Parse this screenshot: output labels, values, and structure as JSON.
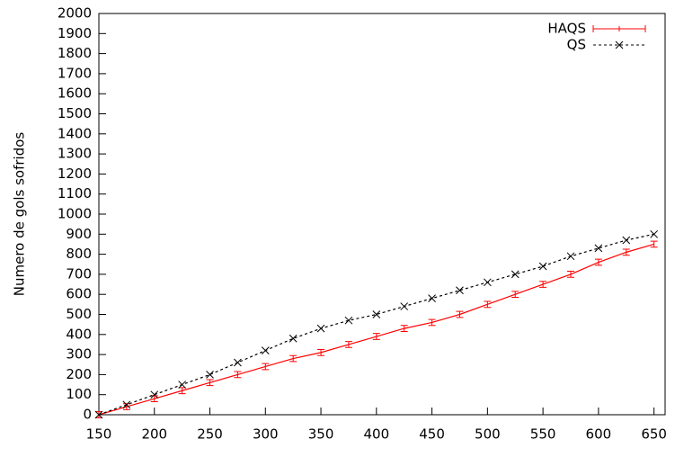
{
  "chart_data": {
    "type": "line",
    "y_label": "Numero de gols sofridos",
    "x": [
      150,
      175,
      200,
      225,
      250,
      275,
      300,
      325,
      350,
      375,
      400,
      425,
      450,
      475,
      500,
      525,
      550,
      575,
      600,
      625,
      650
    ],
    "series": [
      {
        "name": "HAQS",
        "color": "#ff0000",
        "dashed": false,
        "marker": "errorbar",
        "values": [
          0,
          40,
          80,
          120,
          160,
          200,
          240,
          280,
          310,
          350,
          390,
          430,
          460,
          500,
          550,
          600,
          650,
          700,
          760,
          810,
          850
        ],
        "errors": [
          15,
          15,
          15,
          15,
          15,
          15,
          15,
          15,
          15,
          15,
          15,
          15,
          15,
          15,
          15,
          15,
          15,
          15,
          15,
          15,
          15
        ]
      },
      {
        "name": "QS",
        "color": "#000000",
        "dashed": true,
        "marker": "x",
        "values": [
          0,
          50,
          100,
          150,
          200,
          260,
          320,
          380,
          430,
          470,
          500,
          540,
          580,
          620,
          660,
          700,
          740,
          790,
          830,
          870,
          900
        ]
      }
    ],
    "xlim": [
      150,
      660
    ],
    "xticks": [
      150,
      200,
      250,
      300,
      350,
      400,
      450,
      500,
      550,
      600,
      650
    ],
    "ylim": [
      0,
      2000
    ],
    "yticks": [
      0,
      100,
      200,
      300,
      400,
      500,
      600,
      700,
      800,
      900,
      1000,
      1100,
      1200,
      1300,
      1400,
      1500,
      1600,
      1700,
      1800,
      1900,
      2000
    ],
    "legend": "top-right"
  }
}
